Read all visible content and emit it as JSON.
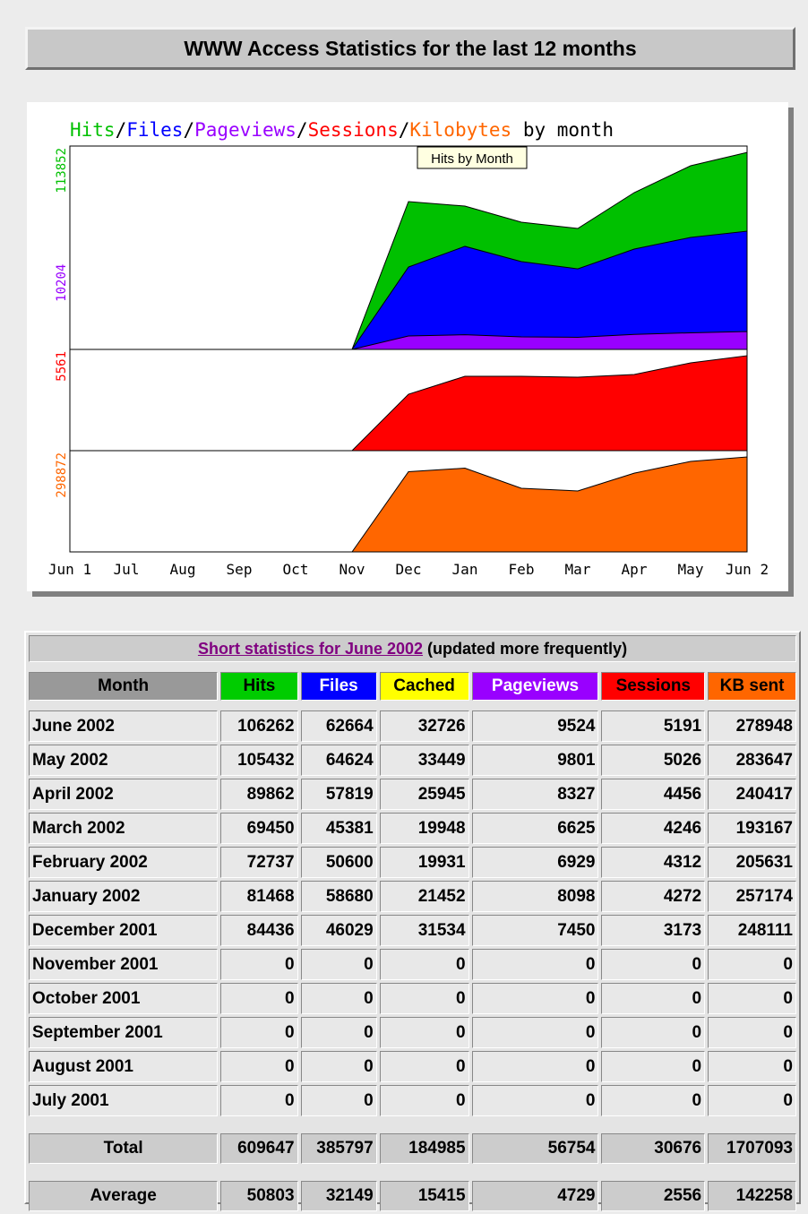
{
  "header": {
    "title": "WWW Access Statistics for the last 12 months"
  },
  "chart_data": {
    "type": "area",
    "title_parts": [
      {
        "text": "Hits",
        "color": "#00c000"
      },
      {
        "text": "/",
        "color": "#000000"
      },
      {
        "text": "Files",
        "color": "#0000ff"
      },
      {
        "text": "/",
        "color": "#000000"
      },
      {
        "text": "Pageviews",
        "color": "#9900ff"
      },
      {
        "text": "/",
        "color": "#000000"
      },
      {
        "text": "Sessions",
        "color": "#ff0000"
      },
      {
        "text": "/",
        "color": "#000000"
      },
      {
        "text": "Kilobytes",
        "color": "#ff6600"
      },
      {
        "text": " by month",
        "color": "#000000"
      }
    ],
    "tooltip": "Hits by Month",
    "categories": [
      "Jun 1",
      "Jul",
      "Aug",
      "Sep",
      "Oct",
      "Nov",
      "Dec",
      "Jan",
      "Feb",
      "Mar",
      "Apr",
      "May",
      "Jun 2"
    ],
    "panels": [
      {
        "ylim": [
          0,
          113852
        ],
        "series": [
          {
            "name": "Hits",
            "color": "#00c000",
            "scale_label": 113852,
            "values": [
              0,
              0,
              0,
              0,
              0,
              0,
              82760,
              80250,
              71200,
              67700,
              87770,
              102800,
              110300
            ]
          },
          {
            "name": "Files",
            "color": "#0000ff",
            "values": [
              0,
              0,
              0,
              0,
              0,
              0,
              46100,
              57700,
              49150,
              45100,
              56170,
              62700,
              66200
            ]
          },
          {
            "name": "Pageviews",
            "color": "#9900ff",
            "scale_label": 10204,
            "values": [
              0,
              0,
              0,
              0,
              0,
              0,
              7500,
              8200,
              7000,
              6800,
              8400,
              9300,
              10000
            ]
          }
        ]
      },
      {
        "ylim": [
          0,
          5561
        ],
        "series": [
          {
            "name": "Sessions",
            "color": "#ff0000",
            "scale_label": 5561,
            "values": [
              0,
              0,
              0,
              0,
              0,
              0,
              3100,
              4085,
              4085,
              4035,
              4183,
              4823,
              5216
            ]
          }
        ]
      },
      {
        "ylim": [
          0,
          298872
        ],
        "series": [
          {
            "name": "Kilobytes",
            "color": "#ff6600",
            "scale_label": 298872,
            "values": [
              0,
              0,
              0,
              0,
              0,
              0,
              236700,
              247300,
              187800,
              179900,
              232500,
              267100,
              280300
            ]
          }
        ]
      }
    ]
  },
  "table": {
    "title_link": "Short statistics for June 2002",
    "title_note": "(updated more frequently)",
    "header": [
      "Month",
      "Hits",
      "Files",
      "Cached",
      "Pageviews",
      "Sessions",
      "KB sent"
    ],
    "header_colors": [
      "#999999",
      "#00cc00",
      "#0000ff",
      "#ffff00",
      "#9900ff",
      "#ff0000",
      "#ff6600"
    ],
    "header_text_colors": [
      "#000000",
      "#000000",
      "#ffffff",
      "#000000",
      "#ffffff",
      "#000000",
      "#000000"
    ],
    "rows": [
      [
        "June 2002",
        106262,
        62664,
        32726,
        9524,
        5191,
        278948
      ],
      [
        "May 2002",
        105432,
        64624,
        33449,
        9801,
        5026,
        283647
      ],
      [
        "April 2002",
        89862,
        57819,
        25945,
        8327,
        4456,
        240417
      ],
      [
        "March 2002",
        69450,
        45381,
        19948,
        6625,
        4246,
        193167
      ],
      [
        "February 2002",
        72737,
        50600,
        19931,
        6929,
        4312,
        205631
      ],
      [
        "January 2002",
        81468,
        58680,
        21452,
        8098,
        4272,
        257174
      ],
      [
        "December 2001",
        84436,
        46029,
        31534,
        7450,
        3173,
        248111
      ],
      [
        "November 2001",
        0,
        0,
        0,
        0,
        0,
        0
      ],
      [
        "October 2001",
        0,
        0,
        0,
        0,
        0,
        0
      ],
      [
        "September 2001",
        0,
        0,
        0,
        0,
        0,
        0
      ],
      [
        "August 2001",
        0,
        0,
        0,
        0,
        0,
        0
      ],
      [
        "July 2001",
        0,
        0,
        0,
        0,
        0,
        0
      ]
    ],
    "total": [
      "Total",
      609647,
      385797,
      184985,
      56754,
      30676,
      1707093
    ],
    "average": [
      "Average",
      50803,
      32149,
      15415,
      4729,
      2556,
      142258
    ]
  }
}
